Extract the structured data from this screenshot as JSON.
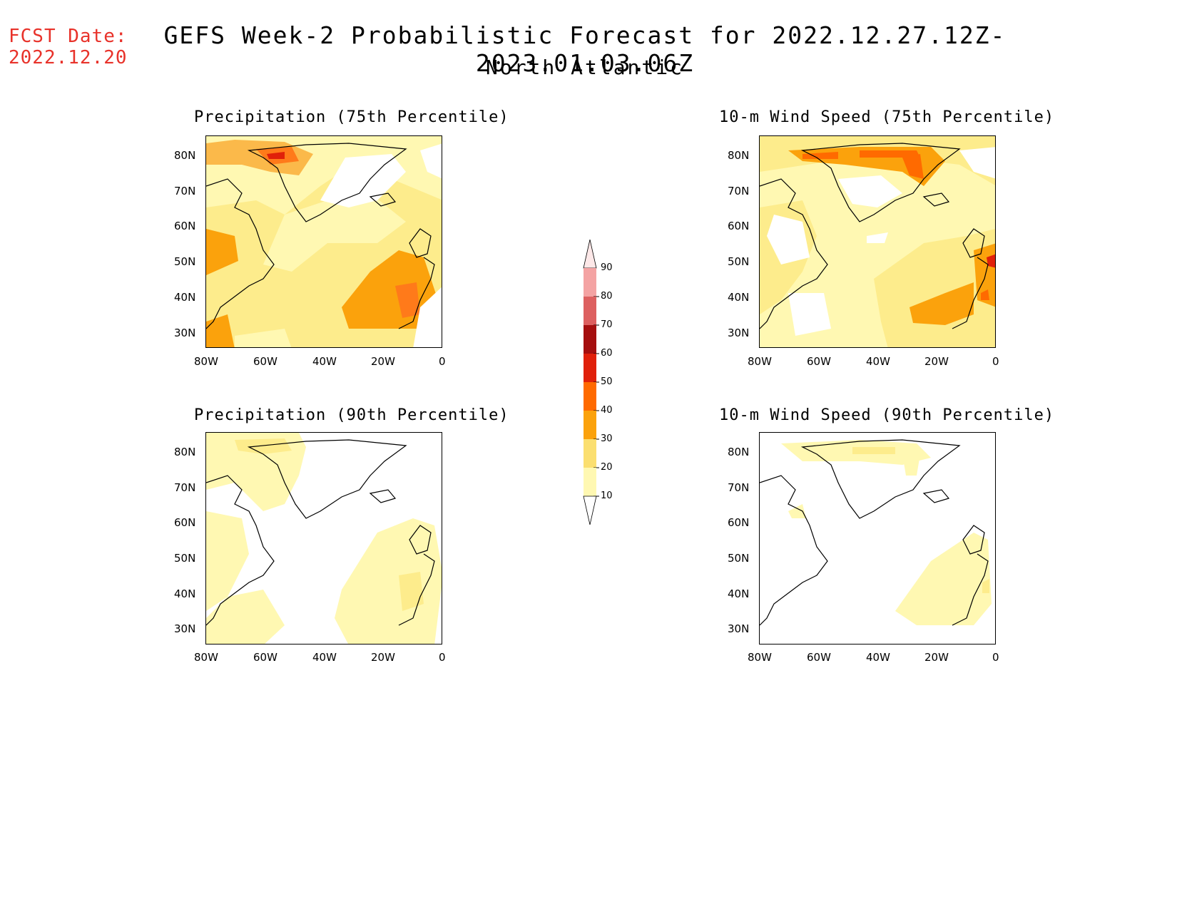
{
  "header": {
    "fcst_label": "FCST Date:",
    "fcst_date": "2022.12.20",
    "title": "GEFS Week-2 Probabilistic Forecast for 2022.12.27.12Z-2023.01.03.06Z",
    "region": "North Atlantic"
  },
  "panels": [
    {
      "title": "Precipitation (75th Percentile)"
    },
    {
      "title": "10-m Wind Speed (75th Percentile)"
    },
    {
      "title": "Precipitation (90th Percentile)"
    },
    {
      "title": "10-m Wind Speed (90th Percentile)"
    }
  ],
  "axes": {
    "lat_labels": [
      "80N",
      "70N",
      "60N",
      "50N",
      "40N",
      "30N"
    ],
    "lon_labels": [
      "80W",
      "60W",
      "40W",
      "20W",
      "0"
    ]
  },
  "colorbar": {
    "levels": [
      "90",
      "80",
      "70",
      "60",
      "50",
      "40",
      "30",
      "20",
      "10"
    ],
    "colors": [
      "#fde8e8",
      "#f4a3a3",
      "#dd6060",
      "#a50f0f",
      "#e0200a",
      "#ff6a00",
      "#fba20c",
      "#fbdf70",
      "#fff8b2"
    ]
  }
}
